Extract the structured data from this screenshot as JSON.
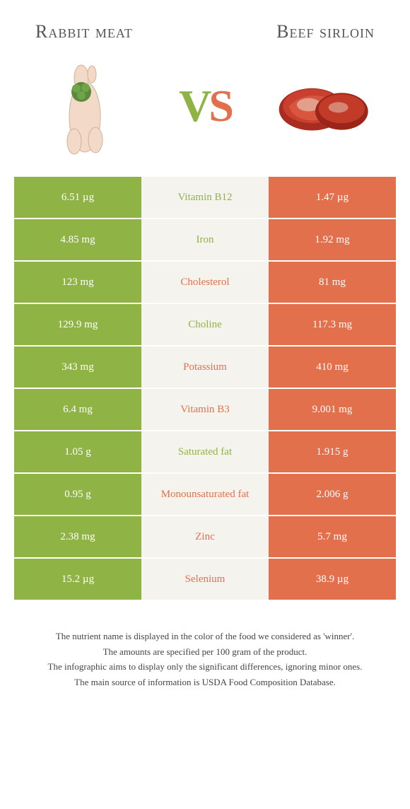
{
  "header": {
    "left_title": "Rabbit meat",
    "right_title": "Beef sirloin"
  },
  "vs": {
    "v": "V",
    "s": "S"
  },
  "colors": {
    "left": "#8fb445",
    "right": "#e3704d",
    "mid_bg": "#f5f3ee",
    "left_text": "#8fb445",
    "right_text": "#e3704d"
  },
  "rows": [
    {
      "left": "6.51 µg",
      "label": "Vitamin B12",
      "right": "1.47 µg",
      "winner": "left"
    },
    {
      "left": "4.85 mg",
      "label": "Iron",
      "right": "1.92 mg",
      "winner": "left"
    },
    {
      "left": "123 mg",
      "label": "Cholesterol",
      "right": "81 mg",
      "winner": "right"
    },
    {
      "left": "129.9 mg",
      "label": "Choline",
      "right": "117.3 mg",
      "winner": "left"
    },
    {
      "left": "343 mg",
      "label": "Potassium",
      "right": "410 mg",
      "winner": "right"
    },
    {
      "left": "6.4 mg",
      "label": "Vitamin B3",
      "right": "9.001 mg",
      "winner": "right"
    },
    {
      "left": "1.05 g",
      "label": "Saturated fat",
      "right": "1.915 g",
      "winner": "left"
    },
    {
      "left": "0.95 g",
      "label": "Monounsaturated fat",
      "right": "2.006 g",
      "winner": "right"
    },
    {
      "left": "2.38 mg",
      "label": "Zinc",
      "right": "5.7 mg",
      "winner": "right"
    },
    {
      "left": "15.2 µg",
      "label": "Selenium",
      "right": "38.9 µg",
      "winner": "right"
    }
  ],
  "footer": {
    "line1": "The nutrient name is displayed in the color of the food we considered as 'winner'.",
    "line2": "The amounts are specified per 100 gram of the product.",
    "line3": "The infographic aims to display only the significant differences, ignoring minor ones.",
    "line4": "The main source of information is USDA Food Composition Database."
  }
}
